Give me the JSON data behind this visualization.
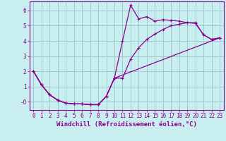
{
  "background_color": "#c8eef0",
  "grid_color": "#a0c8d0",
  "line_color": "#8b008b",
  "xlabel": "Windchill (Refroidissement éolien,°C)",
  "xlim": [
    -0.5,
    23.5
  ],
  "ylim": [
    -0.55,
    6.6
  ],
  "xticks": [
    0,
    1,
    2,
    3,
    4,
    5,
    6,
    7,
    8,
    9,
    10,
    11,
    12,
    13,
    14,
    15,
    16,
    17,
    18,
    19,
    20,
    21,
    22,
    23
  ],
  "yticks": [
    0,
    1,
    2,
    3,
    4,
    5,
    6
  ],
  "ytick_labels": [
    "-0",
    "1",
    "2",
    "3",
    "4",
    "5",
    "6"
  ],
  "curve1_x": [
    0,
    1,
    2,
    3,
    4,
    5,
    6,
    7,
    8,
    9,
    10,
    11,
    12,
    13,
    14,
    15,
    16,
    17,
    18,
    19,
    20,
    21,
    22,
    23
  ],
  "curve1_y": [
    2.0,
    1.1,
    0.45,
    0.1,
    -0.1,
    -0.15,
    -0.15,
    -0.2,
    -0.2,
    0.35,
    1.55,
    4.0,
    6.35,
    5.45,
    5.6,
    5.3,
    5.4,
    5.35,
    5.3,
    5.2,
    5.2,
    4.4,
    4.1,
    4.2
  ],
  "curve2_x": [
    0,
    1,
    2,
    3,
    4,
    5,
    6,
    7,
    8,
    9,
    10,
    11,
    12,
    13,
    14,
    15,
    16,
    17,
    18,
    19,
    20,
    21,
    22,
    23
  ],
  "curve2_y": [
    2.0,
    1.1,
    0.45,
    0.1,
    -0.1,
    -0.15,
    -0.15,
    -0.2,
    -0.2,
    0.35,
    1.55,
    1.55,
    2.8,
    3.55,
    4.1,
    4.45,
    4.75,
    5.0,
    5.1,
    5.2,
    5.15,
    4.4,
    4.1,
    4.2
  ],
  "curve3_x": [
    0,
    1,
    2,
    3,
    4,
    5,
    6,
    7,
    8,
    9,
    10,
    23
  ],
  "curve3_y": [
    2.0,
    1.1,
    0.45,
    0.1,
    -0.1,
    -0.15,
    -0.15,
    -0.2,
    -0.2,
    0.35,
    1.55,
    4.2
  ],
  "marker": "+",
  "markersize": 3.5,
  "linewidth": 0.9,
  "tick_fontsize": 5.5,
  "label_fontsize": 6.5
}
